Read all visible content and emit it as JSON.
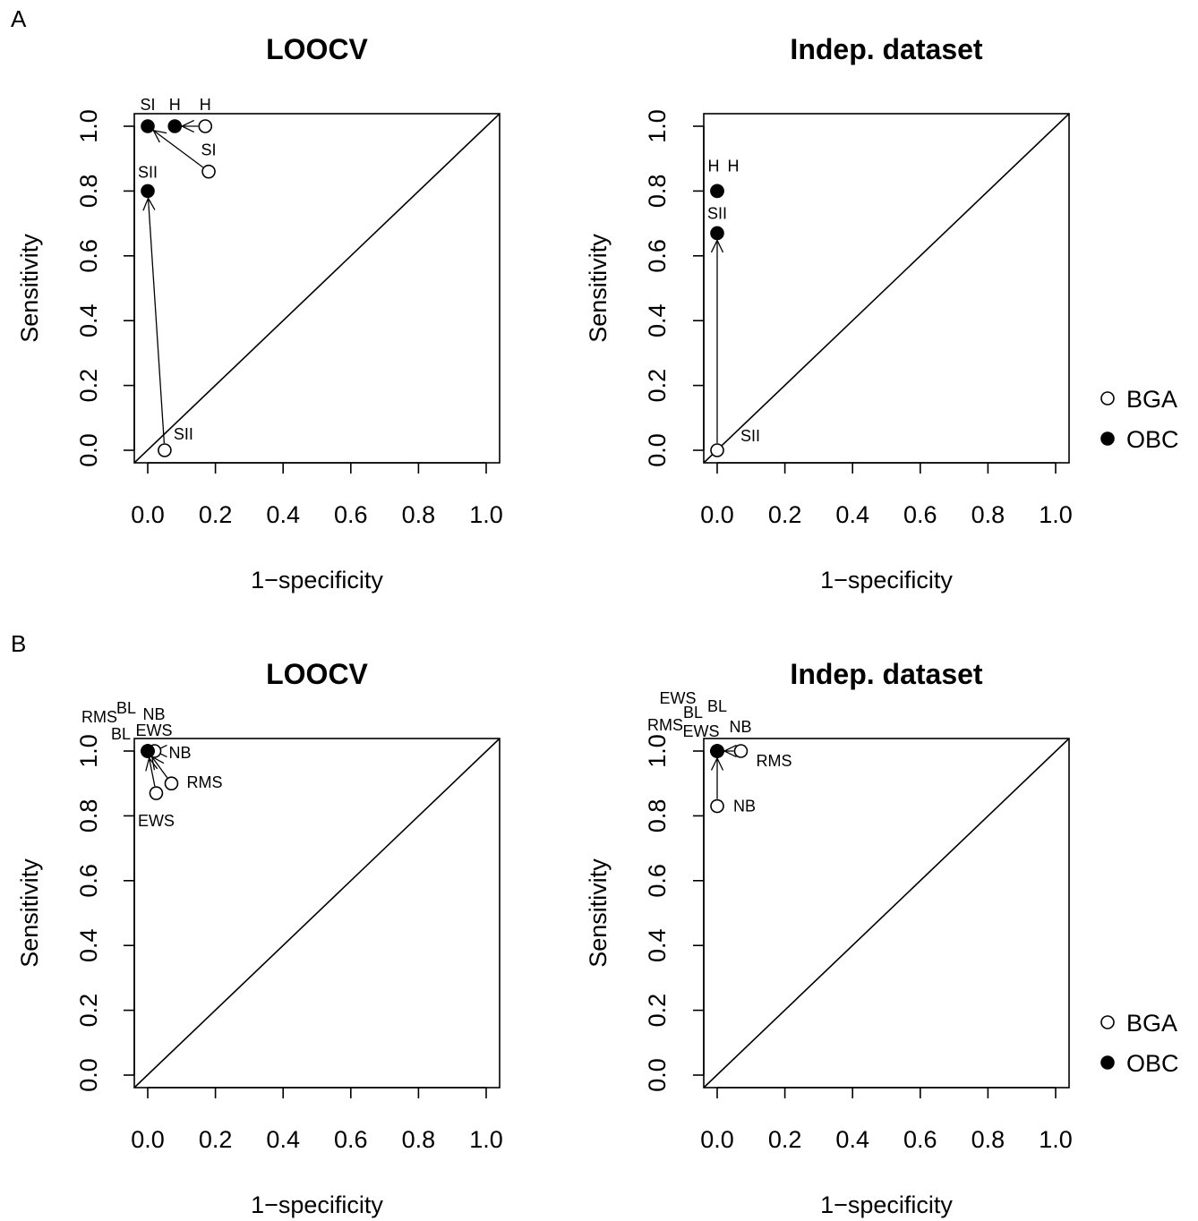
{
  "figure": {
    "panel_labels": [
      "A",
      "B"
    ]
  },
  "legend": [
    {
      "symbol": "open-circle",
      "label": "BGA"
    },
    {
      "symbol": "filled-circle",
      "label": "OBC"
    }
  ],
  "chart_data": [
    {
      "type": "scatter",
      "panel": "A",
      "title": "LOOCV",
      "xlabel": "1−specificity",
      "ylabel": "Sensitivity",
      "xlim": [
        0,
        1
      ],
      "ylim": [
        0,
        1
      ],
      "xticks": [
        "0.0",
        "0.2",
        "0.4",
        "0.6",
        "0.8",
        "1.0"
      ],
      "yticks": [
        "0.0",
        "0.2",
        "0.4",
        "0.6",
        "0.8",
        "1.0"
      ],
      "diagonal": true,
      "series": [
        {
          "name": "BGA",
          "points": [
            {
              "x": 0.17,
              "y": 1.0,
              "label": "H"
            },
            {
              "x": 0.18,
              "y": 0.86,
              "label": "SI"
            },
            {
              "x": 0.05,
              "y": 0.0,
              "label": "SII"
            }
          ]
        },
        {
          "name": "OBC",
          "points": [
            {
              "x": 0.0,
              "y": 1.0,
              "label": "SI"
            },
            {
              "x": 0.08,
              "y": 1.0,
              "label": "H"
            },
            {
              "x": 0.0,
              "y": 0.8,
              "label": "SII"
            }
          ]
        }
      ],
      "arrows": [
        {
          "from": [
            0.17,
            1.0
          ],
          "to": [
            0.08,
            1.0
          ]
        },
        {
          "from": [
            0.18,
            0.86
          ],
          "to": [
            0.0,
            1.0
          ]
        },
        {
          "from": [
            0.05,
            0.0
          ],
          "to": [
            0.0,
            0.8
          ]
        }
      ]
    },
    {
      "type": "scatter",
      "panel": "A",
      "title": "Indep. dataset",
      "xlabel": "1−specificity",
      "ylabel": "Sensitivity",
      "xlim": [
        0,
        1
      ],
      "ylim": [
        0,
        1
      ],
      "xticks": [
        "0.0",
        "0.2",
        "0.4",
        "0.6",
        "0.8",
        "1.0"
      ],
      "yticks": [
        "0.0",
        "0.2",
        "0.4",
        "0.6",
        "0.8",
        "1.0"
      ],
      "diagonal": true,
      "series": [
        {
          "name": "BGA",
          "points": [
            {
              "x": 0.0,
              "y": 0.8,
              "label": "H"
            },
            {
              "x": 0.0,
              "y": 0.0,
              "label": "SII"
            }
          ]
        },
        {
          "name": "OBC",
          "points": [
            {
              "x": 0.0,
              "y": 0.8,
              "label": "H"
            },
            {
              "x": 0.0,
              "y": 0.67,
              "label": "SII"
            }
          ]
        }
      ],
      "arrows": [
        {
          "from": [
            0.0,
            0.0
          ],
          "to": [
            0.0,
            0.67
          ]
        }
      ]
    },
    {
      "type": "scatter",
      "panel": "B",
      "title": "LOOCV",
      "xlabel": "1−specificity",
      "ylabel": "Sensitivity",
      "xlim": [
        0,
        1
      ],
      "ylim": [
        0,
        1
      ],
      "xticks": [
        "0.0",
        "0.2",
        "0.4",
        "0.6",
        "0.8",
        "1.0"
      ],
      "yticks": [
        "0.0",
        "0.2",
        "0.4",
        "0.6",
        "0.8",
        "1.0"
      ],
      "diagonal": true,
      "series": [
        {
          "name": "BGA",
          "points": [
            {
              "x": 0.0,
              "y": 1.0,
              "label": "BL"
            },
            {
              "x": 0.02,
              "y": 1.0,
              "label": "NB"
            },
            {
              "x": 0.07,
              "y": 0.9,
              "label": "RMS"
            },
            {
              "x": 0.025,
              "y": 0.87,
              "label": "EWS"
            }
          ]
        },
        {
          "name": "OBC",
          "points": [
            {
              "x": 0.0,
              "y": 1.0,
              "label": "RMS"
            },
            {
              "x": 0.0,
              "y": 1.0,
              "label": "BL"
            },
            {
              "x": 0.0,
              "y": 1.0,
              "label": "NB"
            },
            {
              "x": 0.0,
              "y": 1.0,
              "label": "EWS"
            }
          ]
        }
      ],
      "arrows": [
        {
          "from": [
            0.02,
            1.0
          ],
          "to": [
            0.0,
            1.0
          ]
        },
        {
          "from": [
            0.07,
            0.9
          ],
          "to": [
            0.0,
            1.0
          ]
        },
        {
          "from": [
            0.025,
            0.87
          ],
          "to": [
            0.0,
            1.0
          ]
        }
      ]
    },
    {
      "type": "scatter",
      "panel": "B",
      "title": "Indep. dataset",
      "xlabel": "1−specificity",
      "ylabel": "Sensitivity",
      "xlim": [
        0,
        1
      ],
      "ylim": [
        0,
        1
      ],
      "xticks": [
        "0.0",
        "0.2",
        "0.4",
        "0.6",
        "0.8",
        "1.0"
      ],
      "yticks": [
        "0.0",
        "0.2",
        "0.4",
        "0.6",
        "0.8",
        "1.0"
      ],
      "diagonal": true,
      "series": [
        {
          "name": "BGA",
          "points": [
            {
              "x": 0.0,
              "y": 1.0,
              "label": "BL"
            },
            {
              "x": 0.0,
              "y": 1.0,
              "label": "EWS"
            },
            {
              "x": 0.07,
              "y": 1.0,
              "label": "RMS"
            },
            {
              "x": 0.0,
              "y": 0.83,
              "label": "NB"
            }
          ]
        },
        {
          "name": "OBC",
          "points": [
            {
              "x": 0.0,
              "y": 1.0,
              "label": "EWS"
            },
            {
              "x": 0.0,
              "y": 1.0,
              "label": "RMS"
            },
            {
              "x": 0.0,
              "y": 1.0,
              "label": "BL"
            },
            {
              "x": 0.0,
              "y": 1.0,
              "label": "NB"
            }
          ]
        }
      ],
      "arrows": [
        {
          "from": [
            0.07,
            1.0
          ],
          "to": [
            0.0,
            1.0
          ]
        },
        {
          "from": [
            0.0,
            0.83
          ],
          "to": [
            0.0,
            1.0
          ]
        }
      ]
    }
  ]
}
